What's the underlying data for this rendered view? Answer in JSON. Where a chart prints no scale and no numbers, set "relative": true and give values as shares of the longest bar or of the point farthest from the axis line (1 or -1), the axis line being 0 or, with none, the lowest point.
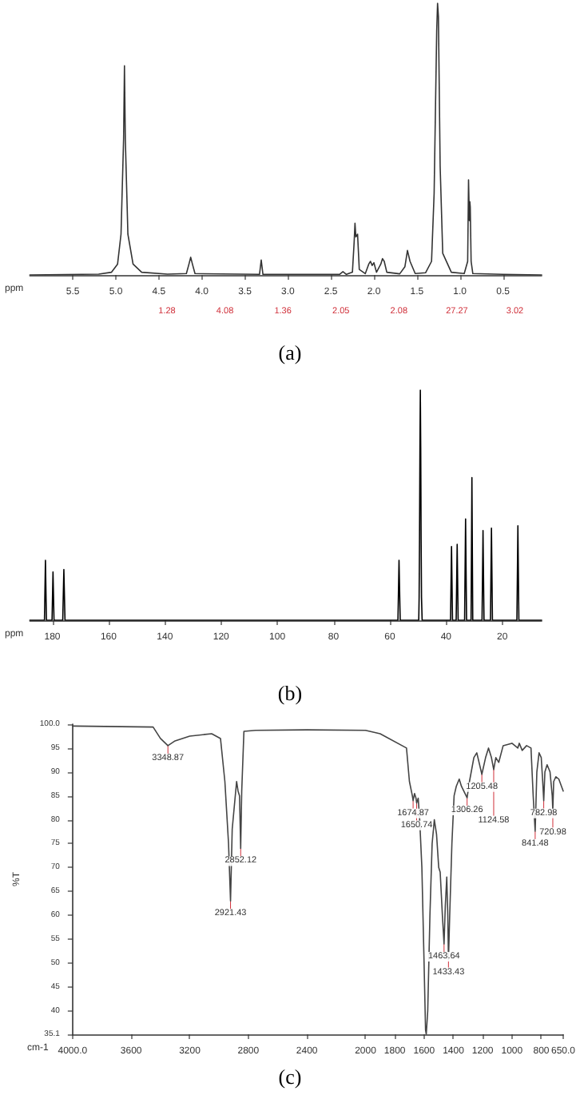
{
  "chart_data": [
    {
      "type": "line",
      "title": "(a)",
      "xlabel": "ppm",
      "relative": true,
      "xlim": [
        6.0,
        0.05
      ],
      "xticks": [
        {
          "value": 5.5,
          "label": "5.5"
        },
        {
          "value": 5,
          "label": "5.0"
        },
        {
          "value": 4.5,
          "label": "4.5"
        },
        {
          "value": 4,
          "label": "4.0"
        },
        {
          "value": 3.5,
          "label": "3.5"
        },
        {
          "value": 3,
          "label": "3.0"
        },
        {
          "value": 2.5,
          "label": "2.5"
        },
        {
          "value": 2,
          "label": "2.0"
        },
        {
          "value": 1.5,
          "label": "1.5"
        },
        {
          "value": 1,
          "label": "1.0"
        },
        {
          "value": 0.5,
          "label": "0.5"
        }
      ],
      "x": [
        6.0,
        5.2,
        5.05,
        4.98,
        4.94,
        4.91,
        4.9,
        4.89,
        4.86,
        4.8,
        4.7,
        4.4,
        4.18,
        4.15,
        4.13,
        4.11,
        4.08,
        3.33,
        3.31,
        3.29,
        2.4,
        2.36,
        2.32,
        2.25,
        2.23,
        2.22,
        2.21,
        2.19,
        2.17,
        2.1,
        2.06,
        2.04,
        2.02,
        2.0,
        1.97,
        1.92,
        1.9,
        1.88,
        1.85,
        1.7,
        1.64,
        1.61,
        1.58,
        1.52,
        1.4,
        1.33,
        1.3,
        1.27,
        1.26,
        1.25,
        1.23,
        1.2,
        1.1,
        0.95,
        0.91,
        0.9,
        0.89,
        0.885,
        0.88,
        0.87,
        0.85,
        0.5,
        0.05
      ],
      "series": [
        {
          "color": "#333333",
          "values": [
            0,
            0.003,
            0.01,
            0.04,
            0.15,
            0.5,
            0.77,
            0.5,
            0.15,
            0.04,
            0.01,
            0.003,
            0.005,
            0.04,
            0.065,
            0.04,
            0.005,
            0.002,
            0.055,
            0.002,
            0.002,
            0.012,
            0.002,
            0.01,
            0.12,
            0.19,
            0.14,
            0.15,
            0.02,
            0.005,
            0.04,
            0.05,
            0.035,
            0.045,
            0.01,
            0.04,
            0.06,
            0.05,
            0.01,
            0.004,
            0.03,
            0.09,
            0.05,
            0.005,
            0.008,
            0.05,
            0.3,
            0.9,
            1,
            0.95,
            0.4,
            0.08,
            0.01,
            0.005,
            0.05,
            0.35,
            0.2,
            0.27,
            0.25,
            0.05,
            0.005,
            0.002,
            0
          ]
        }
      ],
      "annotations": [
        "1.28",
        "4.08",
        "1.36",
        "2.05",
        "2.08",
        "27.27",
        "3.02"
      ]
    },
    {
      "type": "line",
      "title": "(b)",
      "xlabel": "ppm",
      "relative": true,
      "xlim": [
        188,
        6
      ],
      "xticks": [
        180,
        160,
        140,
        120,
        100,
        80,
        60,
        40,
        20
      ],
      "x": [
        188,
        182.8,
        182.45,
        182.1,
        180.1,
        179.76,
        179.4,
        176.3,
        175.9,
        175.5,
        57.1,
        56.72,
        56.3,
        49.7,
        49.57,
        49.43,
        49.28,
        49.14,
        49.0,
        48.86,
        48.72,
        48.5,
        38.4,
        38.05,
        37.7,
        36.4,
        36.04,
        35.7,
        33.4,
        33.05,
        32.7,
        31.1,
        30.8,
        30.5,
        27.2,
        26.85,
        26.5,
        24.2,
        23.85,
        23.5,
        14.8,
        14.45,
        14.1,
        6
      ],
      "series": [
        {
          "color": "#000000",
          "values": [
            0,
            0,
            0.26,
            0,
            0,
            0.21,
            0,
            0,
            0.22,
            0,
            0,
            0.26,
            0,
            0,
            0.1,
            0.35,
            0.75,
            1,
            0.75,
            0.35,
            0.1,
            0,
            0,
            0.32,
            0,
            0,
            0.33,
            0,
            0,
            0.44,
            0,
            0,
            0.62,
            0,
            0,
            0.39,
            0,
            0,
            0.4,
            0,
            0,
            0.41,
            0,
            0
          ]
        }
      ]
    },
    {
      "type": "line",
      "title": "(c)",
      "xlabel": "cm-1",
      "ylabel": "%T",
      "xlim": [
        4000,
        650
      ],
      "ylim": [
        35.1,
        100
      ],
      "xticks": [
        {
          "value": 4000,
          "label": "4000.0"
        },
        3600,
        3200,
        2800,
        2400,
        2000,
        1800,
        1600,
        1400,
        1200,
        1000,
        800,
        {
          "value": 650,
          "label": "650.0"
        }
      ],
      "yticks": [
        {
          "value": 35.1,
          "label": "35.1"
        },
        40,
        45,
        50,
        55,
        60,
        65,
        70,
        75,
        80,
        85,
        90,
        95,
        {
          "value": 100,
          "label": "100.0"
        }
      ],
      "x": [
        4000,
        3450,
        3400,
        3348.87,
        3300,
        3200,
        3050,
        2990,
        2960,
        2935,
        2921.43,
        2910,
        2880,
        2870,
        2860,
        2852.12,
        2845,
        2830,
        2750,
        2400,
        2000,
        1900,
        1720,
        1700,
        1680,
        1674.87,
        1665,
        1655,
        1650.74,
        1640,
        1630,
        1615,
        1600,
        1590,
        1585,
        1575,
        1560,
        1545,
        1530,
        1515,
        1500,
        1490,
        1475,
        1463.64,
        1455,
        1445,
        1438,
        1433.43,
        1425,
        1410,
        1395,
        1380,
        1360,
        1345,
        1306.26,
        1290,
        1260,
        1240,
        1205.48,
        1180,
        1160,
        1140,
        1124.58,
        1110,
        1090,
        1060,
        1000,
        960,
        950,
        930,
        900,
        870,
        855,
        841.48,
        830,
        815,
        800,
        790,
        782.98,
        775,
        760,
        740,
        725,
        720.98,
        715,
        700,
        680,
        650
      ],
      "series": [
        {
          "color": "#444444",
          "values": [
            99.6,
            99.4,
            97,
            95.5,
            96.5,
            97.5,
            98,
            97,
            88,
            75,
            63,
            78,
            88,
            86,
            85,
            74,
            86,
            98.5,
            98.7,
            98.8,
            98.7,
            98,
            95,
            88,
            85,
            84,
            85.5,
            84.5,
            83.5,
            84.5,
            80,
            70,
            50,
            36,
            35.1,
            40,
            60,
            75,
            80,
            77,
            70,
            69,
            60,
            54,
            62,
            68,
            60,
            50.7,
            60,
            75,
            85,
            87,
            88.5,
            87,
            84.6,
            88,
            93,
            94,
            89.5,
            93,
            95,
            93,
            90.5,
            93,
            92,
            95.5,
            96,
            95,
            96,
            94.5,
            95.5,
            95,
            85,
            77.6,
            90,
            94,
            93,
            88,
            84,
            90,
            91.5,
            90,
            85,
            82,
            88,
            89,
            88.5,
            86
          ]
        }
      ],
      "annotations": [
        {
          "text": "3348.87",
          "x": 3348.87,
          "y": 95.5
        },
        {
          "text": "2921.43",
          "x": 2921.43,
          "y": 63
        },
        {
          "text": "2852.12",
          "x": 2852.12,
          "y": 74
        },
        {
          "text": "1674.87",
          "x": 1674.87,
          "y": 84
        },
        {
          "text": "1650.74",
          "x": 1650.74,
          "y": 83.5
        },
        {
          "text": "1463.64",
          "x": 1463.64,
          "y": 54
        },
        {
          "text": "1433.43",
          "x": 1433.43,
          "y": 50.7
        },
        {
          "text": "1306.26",
          "x": 1306.26,
          "y": 84.6
        },
        {
          "text": "1205.48",
          "x": 1205.48,
          "y": 89.5
        },
        {
          "text": "1124.58",
          "x": 1124.58,
          "y": 90.5
        },
        {
          "text": "841.48",
          "x": 841.48,
          "y": 77.6
        },
        {
          "text": "782.98",
          "x": 782.98,
          "y": 84
        },
        {
          "text": "720.98",
          "x": 720.98,
          "y": 82
        }
      ]
    }
  ]
}
